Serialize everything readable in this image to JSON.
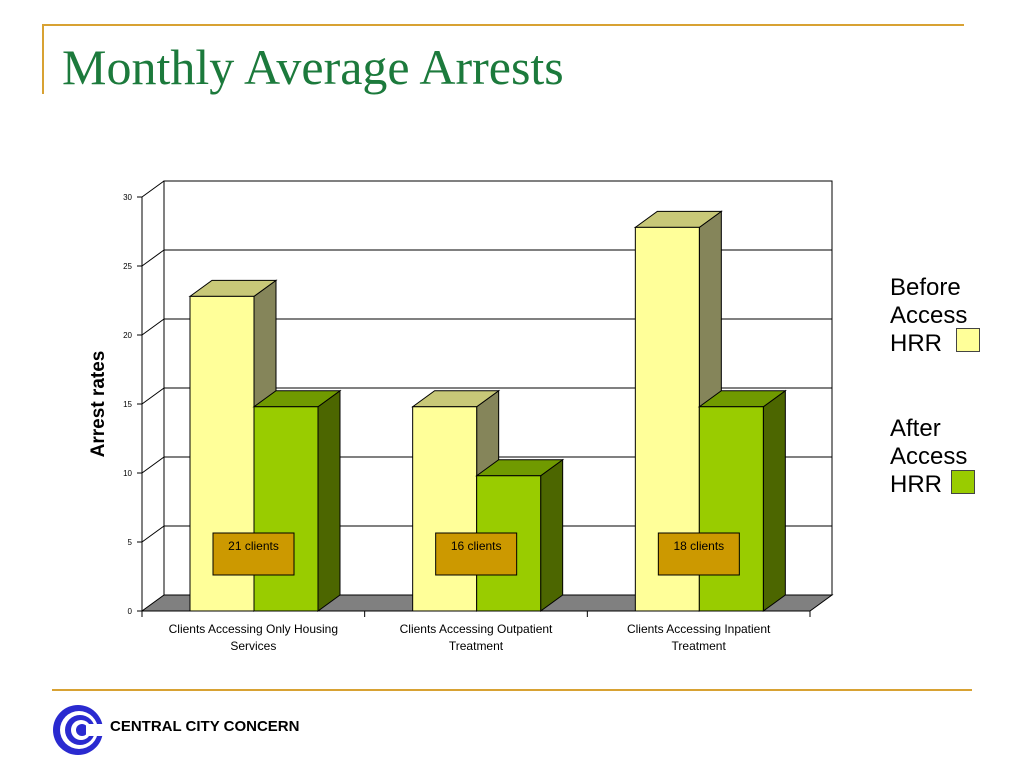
{
  "slide": {
    "title": "Monthly Average Arrests",
    "brand": "CENTRAL CITY CONCERN"
  },
  "colors": {
    "title": "#1c7a3c",
    "rule": "#d8a233",
    "before_front": "#ffff99",
    "before_top": "#c8c878",
    "before_side": "#85855a",
    "after_front": "#99cc00",
    "after_top": "#709a00",
    "after_side": "#4c6600",
    "floor": "#808080",
    "client_box": "#cc9900",
    "logo": "#2a2ad0"
  },
  "chart_data": {
    "type": "bar",
    "categories": [
      "Clients Accessing Only Housing Services",
      "Clients Accessing Outpatient Treatment",
      "Clients Accessing Inpatient Treatment"
    ],
    "series": [
      {
        "name": "Before Access HRR",
        "values": [
          22.8,
          14.8,
          27.8
        ]
      },
      {
        "name": "After Access HRR",
        "values": [
          14.8,
          9.8,
          14.8
        ]
      }
    ],
    "annotations": [
      "21 clients",
      "16 clients",
      "18 clients"
    ],
    "ylabel": "Arrest rates",
    "xlabel": "",
    "ylim": [
      0,
      30
    ],
    "yticks": [
      "0",
      "5",
      "10",
      "15",
      "20",
      "25",
      "30"
    ],
    "grid": true,
    "legend": "right"
  }
}
